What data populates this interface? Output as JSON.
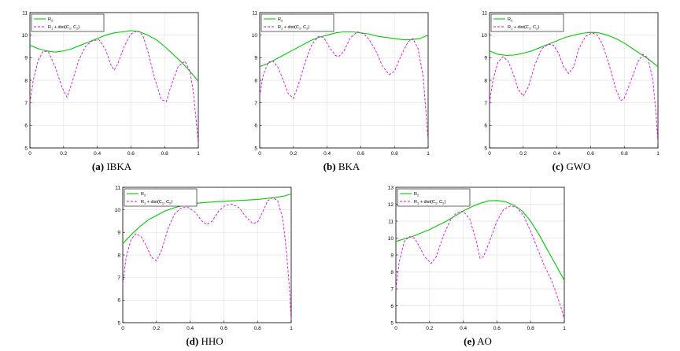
{
  "legend": {
    "series_a": "R",
    "series_a_sub": "2",
    "series_b": "R",
    "series_b_sub": "1",
    "series_b_rest": " + dist(C",
    "series_b_c1": "1",
    "series_b_mid": ", C",
    "series_b_c2": "2",
    "series_b_end": ")"
  },
  "colors": {
    "series_a": "#00cc00",
    "series_b": "#e600e6"
  },
  "chart_data": [
    {
      "type": "line",
      "caption_tag": "(a)",
      "caption_name": "IBKA",
      "xlim": [
        0,
        1
      ],
      "ylim": [
        5,
        11
      ],
      "xticks": [
        "0",
        "0.2",
        "0.4",
        "0.6",
        "0.8",
        "1"
      ],
      "yticks": [
        "5",
        "6",
        "7",
        "8",
        "9",
        "10",
        "11"
      ],
      "legend_position": "top-left",
      "grid": true,
      "series": [
        {
          "x": [
            0,
            0.05,
            0.1,
            0.15,
            0.2,
            0.25,
            0.3,
            0.35,
            0.4,
            0.45,
            0.5,
            0.55,
            0.6,
            0.65,
            0.7,
            0.75,
            0.8,
            0.85,
            0.9,
            0.95,
            1.0
          ],
          "y": [
            9.55,
            9.4,
            9.3,
            9.25,
            9.3,
            9.4,
            9.55,
            9.7,
            9.85,
            10.0,
            10.1,
            10.15,
            10.2,
            10.15,
            10.0,
            9.8,
            9.5,
            9.15,
            8.8,
            8.4,
            7.95
          ]
        },
        {
          "x": [
            0,
            0.02,
            0.05,
            0.08,
            0.11,
            0.15,
            0.19,
            0.22,
            0.25,
            0.29,
            0.33,
            0.37,
            0.41,
            0.45,
            0.48,
            0.5,
            0.52,
            0.56,
            0.6,
            0.64,
            0.67,
            0.7,
            0.74,
            0.78,
            0.81,
            0.84,
            0.88,
            0.92,
            0.95,
            0.97,
            0.99,
            1.0
          ],
          "y": [
            7.0,
            8.0,
            8.9,
            9.3,
            9.25,
            8.6,
            7.7,
            7.25,
            7.9,
            8.9,
            9.5,
            9.75,
            9.8,
            9.35,
            8.7,
            8.45,
            8.7,
            9.5,
            10.05,
            10.2,
            10.0,
            9.3,
            8.1,
            7.15,
            7.05,
            7.8,
            8.6,
            8.85,
            8.4,
            7.5,
            6.0,
            5.2
          ]
        }
      ]
    },
    {
      "type": "line",
      "caption_tag": "(b)",
      "caption_name": "BKA",
      "xlim": [
        0,
        1
      ],
      "ylim": [
        5,
        11
      ],
      "xticks": [
        "0",
        "0.2",
        "0.4",
        "0.6",
        "0.8",
        "1"
      ],
      "yticks": [
        "5",
        "6",
        "7",
        "8",
        "9",
        "10",
        "11"
      ],
      "legend_position": "top-left",
      "grid": true,
      "series": [
        {
          "x": [
            0,
            0.05,
            0.1,
            0.15,
            0.2,
            0.25,
            0.3,
            0.35,
            0.4,
            0.45,
            0.5,
            0.55,
            0.6,
            0.65,
            0.7,
            0.75,
            0.8,
            0.85,
            0.9,
            0.95,
            1.0
          ],
          "y": [
            8.6,
            8.75,
            8.95,
            9.15,
            9.35,
            9.55,
            9.75,
            9.9,
            10.0,
            10.1,
            10.15,
            10.15,
            10.1,
            10.05,
            9.95,
            9.9,
            9.85,
            9.8,
            9.8,
            9.85,
            10.0
          ]
        },
        {
          "x": [
            0,
            0.02,
            0.05,
            0.08,
            0.11,
            0.14,
            0.17,
            0.2,
            0.23,
            0.27,
            0.31,
            0.35,
            0.38,
            0.41,
            0.45,
            0.47,
            0.5,
            0.54,
            0.58,
            0.62,
            0.65,
            0.69,
            0.73,
            0.77,
            0.8,
            0.84,
            0.88,
            0.91,
            0.94,
            0.97,
            0.99,
            1.0
          ],
          "y": [
            7.3,
            8.2,
            8.8,
            8.85,
            8.55,
            8.0,
            7.4,
            7.2,
            7.8,
            8.8,
            9.6,
            9.95,
            9.9,
            9.5,
            9.1,
            9.05,
            9.3,
            9.9,
            10.15,
            10.05,
            9.8,
            9.3,
            8.6,
            8.25,
            8.4,
            9.1,
            9.7,
            9.85,
            9.4,
            8.2,
            6.3,
            5.3
          ]
        }
      ]
    },
    {
      "type": "line",
      "caption_tag": "(c)",
      "caption_name": "GWO",
      "xlim": [
        0,
        1
      ],
      "ylim": [
        5,
        11
      ],
      "xticks": [
        "0",
        "0.2",
        "0.4",
        "0.6",
        "0.8",
        "1"
      ],
      "yticks": [
        "5",
        "6",
        "7",
        "8",
        "9",
        "10",
        "11"
      ],
      "legend_position": "top-left",
      "grid": true,
      "series": [
        {
          "x": [
            0,
            0.05,
            0.1,
            0.15,
            0.2,
            0.25,
            0.3,
            0.35,
            0.4,
            0.45,
            0.5,
            0.55,
            0.6,
            0.65,
            0.7,
            0.75,
            0.8,
            0.85,
            0.9,
            0.95,
            1.0
          ],
          "y": [
            9.3,
            9.15,
            9.1,
            9.12,
            9.2,
            9.3,
            9.45,
            9.6,
            9.75,
            9.9,
            10.0,
            10.08,
            10.12,
            10.1,
            10.0,
            9.85,
            9.65,
            9.4,
            9.15,
            8.9,
            8.6
          ]
        },
        {
          "x": [
            0,
            0.02,
            0.05,
            0.08,
            0.11,
            0.14,
            0.17,
            0.2,
            0.23,
            0.27,
            0.31,
            0.35,
            0.38,
            0.41,
            0.44,
            0.47,
            0.5,
            0.53,
            0.57,
            0.61,
            0.64,
            0.67,
            0.71,
            0.75,
            0.78,
            0.8,
            0.84,
            0.88,
            0.91,
            0.94,
            0.97,
            0.99,
            1.0
          ],
          "y": [
            7.0,
            8.0,
            8.8,
            9.05,
            8.85,
            8.3,
            7.6,
            7.3,
            7.7,
            8.7,
            9.4,
            9.6,
            9.55,
            9.2,
            8.6,
            8.3,
            8.6,
            9.4,
            9.95,
            10.1,
            10.0,
            9.6,
            8.7,
            7.6,
            7.1,
            7.2,
            8.0,
            8.8,
            9.15,
            9.0,
            8.0,
            6.4,
            5.2
          ]
        }
      ]
    },
    {
      "type": "line",
      "caption_tag": "(d)",
      "caption_name": "HHO",
      "xlim": [
        0,
        1
      ],
      "ylim": [
        5,
        11
      ],
      "xticks": [
        "0",
        "0.2",
        "0.4",
        "0.6",
        "0.8",
        "1"
      ],
      "yticks": [
        "5",
        "6",
        "7",
        "8",
        "9",
        "10",
        "11"
      ],
      "legend_position": "top-left",
      "grid": true,
      "series": [
        {
          "x": [
            0,
            0.05,
            0.1,
            0.15,
            0.2,
            0.25,
            0.3,
            0.35,
            0.4,
            0.45,
            0.5,
            0.55,
            0.6,
            0.65,
            0.7,
            0.75,
            0.8,
            0.85,
            0.9,
            0.95,
            1.0
          ],
          "y": [
            8.5,
            8.9,
            9.25,
            9.55,
            9.75,
            9.95,
            10.08,
            10.18,
            10.25,
            10.3,
            10.33,
            10.36,
            10.38,
            10.4,
            10.42,
            10.44,
            10.46,
            10.5,
            10.55,
            10.6,
            10.7
          ]
        },
        {
          "x": [
            0,
            0.02,
            0.05,
            0.08,
            0.11,
            0.14,
            0.17,
            0.2,
            0.23,
            0.27,
            0.31,
            0.35,
            0.39,
            0.43,
            0.47,
            0.5,
            0.53,
            0.57,
            0.61,
            0.65,
            0.69,
            0.73,
            0.77,
            0.8,
            0.83,
            0.86,
            0.89,
            0.92,
            0.95,
            0.97,
            0.99,
            1.0
          ],
          "y": [
            6.7,
            7.9,
            8.7,
            8.95,
            8.8,
            8.4,
            7.9,
            7.75,
            8.2,
            9.2,
            9.85,
            10.1,
            10.1,
            9.9,
            9.5,
            9.35,
            9.5,
            9.95,
            10.2,
            10.25,
            10.1,
            9.7,
            9.4,
            9.45,
            9.9,
            10.4,
            10.55,
            10.4,
            9.6,
            8.3,
            6.5,
            5.1
          ]
        }
      ]
    },
    {
      "type": "line",
      "caption_tag": "(e)",
      "caption_name": "AO",
      "xlim": [
        0,
        1
      ],
      "ylim": [
        5,
        13
      ],
      "xticks": [
        "0",
        "0.2",
        "0.4",
        "0.6",
        "0.8",
        "1"
      ],
      "yticks": [
        "5",
        "6",
        "7",
        "8",
        "9",
        "10",
        "11",
        "12",
        "13"
      ],
      "legend_position": "top-left",
      "grid": true,
      "series": [
        {
          "x": [
            0,
            0.05,
            0.1,
            0.15,
            0.2,
            0.25,
            0.3,
            0.35,
            0.4,
            0.45,
            0.5,
            0.55,
            0.6,
            0.65,
            0.7,
            0.75,
            0.8,
            0.85,
            0.9,
            0.95,
            1.0
          ],
          "y": [
            9.8,
            9.95,
            10.1,
            10.3,
            10.5,
            10.75,
            11.0,
            11.3,
            11.6,
            11.85,
            12.05,
            12.2,
            12.22,
            12.15,
            11.95,
            11.6,
            11.0,
            10.2,
            9.3,
            8.4,
            7.5
          ]
        },
        {
          "x": [
            0,
            0.02,
            0.05,
            0.08,
            0.11,
            0.14,
            0.17,
            0.21,
            0.24,
            0.28,
            0.32,
            0.36,
            0.4,
            0.44,
            0.48,
            0.5,
            0.52,
            0.56,
            0.6,
            0.64,
            0.68,
            0.72,
            0.76,
            0.8,
            0.84,
            0.88,
            0.92,
            0.95,
            0.97,
            0.99,
            1.0
          ],
          "y": [
            7.0,
            8.6,
            9.8,
            10.1,
            10.0,
            9.5,
            8.9,
            8.5,
            8.9,
            10.1,
            11.0,
            11.5,
            11.6,
            11.1,
            9.7,
            8.8,
            8.9,
            9.9,
            11.0,
            11.7,
            11.9,
            11.8,
            11.3,
            10.4,
            9.4,
            8.4,
            7.6,
            6.8,
            6.2,
            5.6,
            5.2
          ]
        }
      ]
    }
  ]
}
